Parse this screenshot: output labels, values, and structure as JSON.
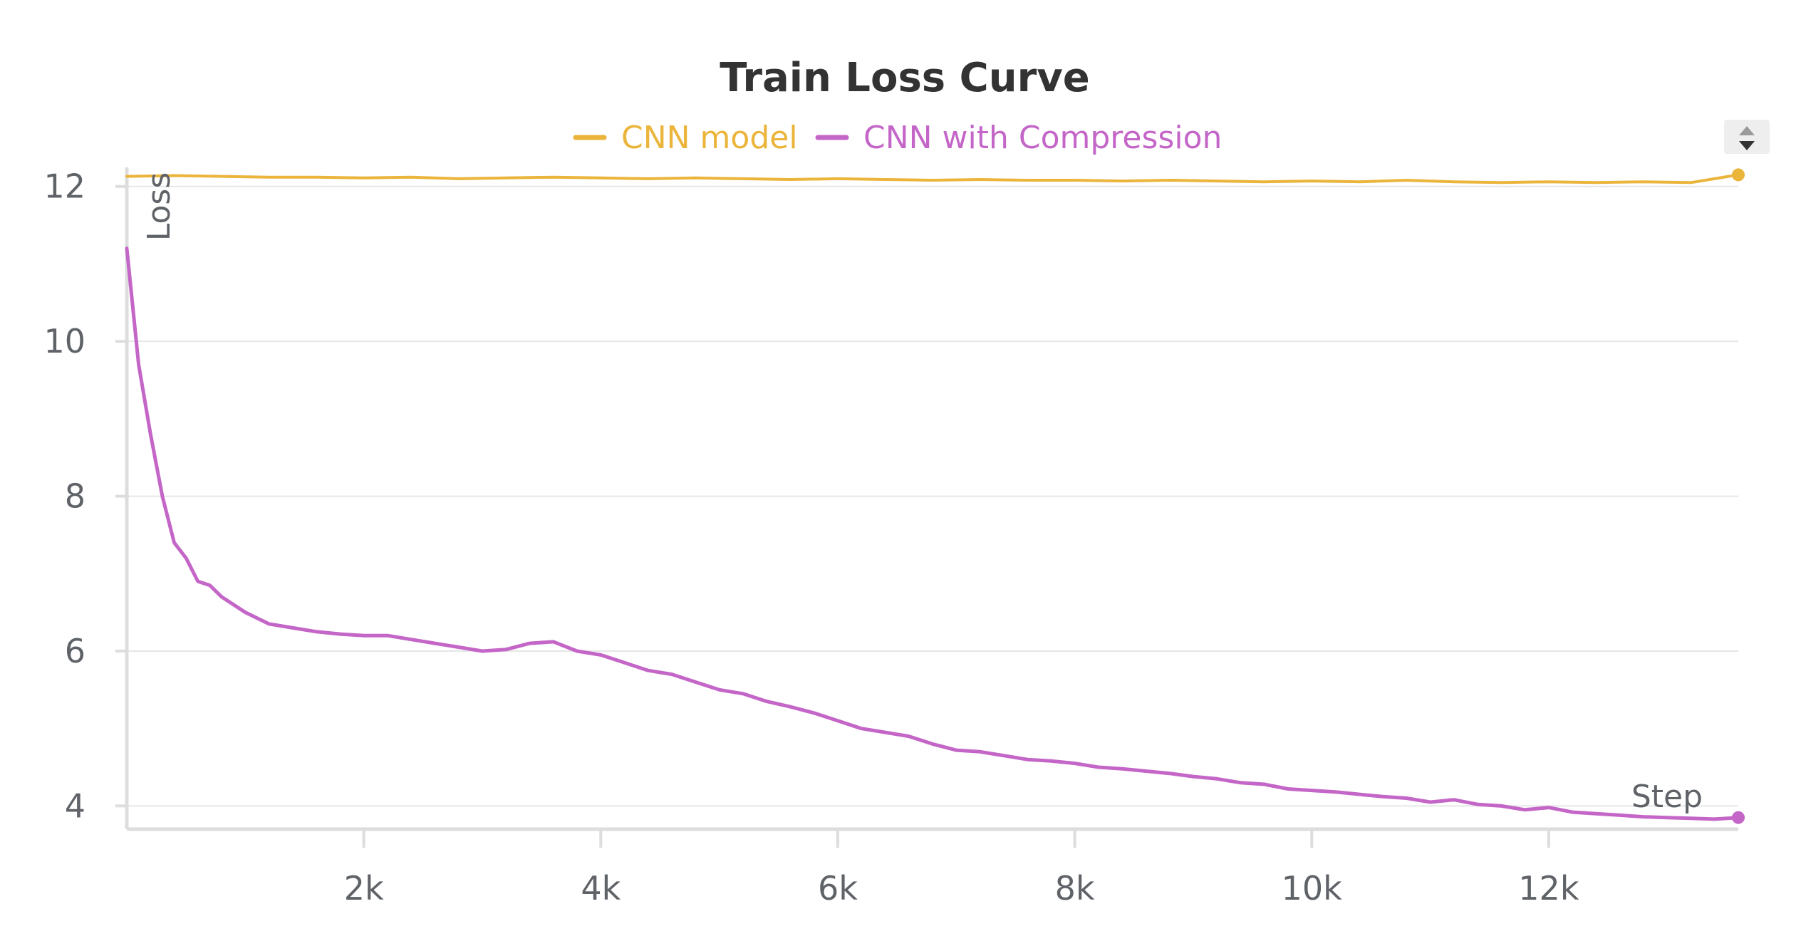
{
  "chart_data": {
    "type": "line",
    "title": "Train Loss Curve",
    "xlabel": "Step",
    "ylabel": "Loss",
    "xlim": [
      0,
      13600
    ],
    "ylim": [
      3.7,
      12.2
    ],
    "xticks": [
      2000,
      4000,
      6000,
      8000,
      10000,
      12000
    ],
    "xtick_labels": [
      "2k",
      "4k",
      "6k",
      "8k",
      "10k",
      "12k"
    ],
    "yticks": [
      4,
      6,
      8,
      10,
      12
    ],
    "ytick_labels": [
      "4",
      "6",
      "8",
      "10",
      "12"
    ],
    "grid": true,
    "legend_position": "top-center",
    "series": [
      {
        "name": "CNN model",
        "color": "#ebb43a",
        "x": [
          0,
          400,
          800,
          1200,
          1600,
          2000,
          2400,
          2800,
          3200,
          3600,
          4000,
          4400,
          4800,
          5200,
          5600,
          6000,
          6400,
          6800,
          7200,
          7600,
          8000,
          8400,
          8800,
          9200,
          9600,
          10000,
          10400,
          10800,
          11200,
          11600,
          12000,
          12400,
          12800,
          13200,
          13600
        ],
        "values": [
          12.13,
          12.14,
          12.13,
          12.12,
          12.12,
          12.11,
          12.12,
          12.1,
          12.11,
          12.12,
          12.11,
          12.1,
          12.11,
          12.1,
          12.09,
          12.1,
          12.09,
          12.08,
          12.09,
          12.08,
          12.08,
          12.07,
          12.08,
          12.07,
          12.06,
          12.07,
          12.06,
          12.08,
          12.06,
          12.05,
          12.06,
          12.05,
          12.06,
          12.05,
          12.15
        ]
      },
      {
        "name": "CNN with Compression",
        "color": "#c466c8",
        "x": [
          0,
          100,
          200,
          300,
          400,
          500,
          600,
          700,
          800,
          1000,
          1200,
          1400,
          1600,
          1800,
          2000,
          2200,
          2400,
          2600,
          2800,
          3000,
          3200,
          3400,
          3600,
          3800,
          4000,
          4200,
          4400,
          4600,
          4800,
          5000,
          5200,
          5400,
          5600,
          5800,
          6000,
          6200,
          6400,
          6600,
          6800,
          7000,
          7200,
          7400,
          7600,
          7800,
          8000,
          8200,
          8400,
          8600,
          8800,
          9000,
          9200,
          9400,
          9600,
          9800,
          10000,
          10200,
          10400,
          10600,
          10800,
          11000,
          11200,
          11400,
          11600,
          11800,
          12000,
          12200,
          12400,
          12600,
          12800,
          13000,
          13200,
          13400,
          13600
        ],
        "values": [
          11.2,
          9.7,
          8.8,
          8.0,
          7.4,
          7.2,
          6.9,
          6.85,
          6.7,
          6.5,
          6.35,
          6.3,
          6.25,
          6.22,
          6.2,
          6.2,
          6.15,
          6.1,
          6.05,
          6.0,
          6.02,
          6.1,
          6.12,
          6.0,
          5.95,
          5.85,
          5.75,
          5.7,
          5.6,
          5.5,
          5.45,
          5.35,
          5.28,
          5.2,
          5.1,
          5.0,
          4.95,
          4.9,
          4.8,
          4.72,
          4.7,
          4.65,
          4.6,
          4.58,
          4.55,
          4.5,
          4.48,
          4.45,
          4.42,
          4.38,
          4.35,
          4.3,
          4.28,
          4.22,
          4.2,
          4.18,
          4.15,
          4.12,
          4.1,
          4.05,
          4.08,
          4.02,
          4.0,
          3.95,
          3.98,
          3.92,
          3.9,
          3.88,
          3.86,
          3.85,
          3.84,
          3.83,
          3.85
        ]
      }
    ]
  },
  "controls": {
    "scroll_up_icon": "triangle-up-icon",
    "scroll_down_icon": "triangle-down-icon"
  }
}
